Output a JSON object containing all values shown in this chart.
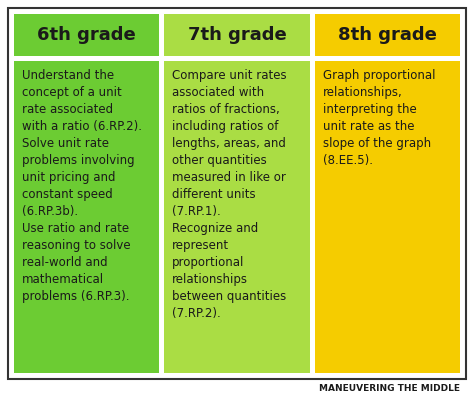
{
  "background_color": "#ffffff",
  "border_color": "#333333",
  "columns": [
    {
      "header": "6th grade",
      "header_bg": "#6ccc33",
      "body_bg": "#6ccc33",
      "body_text": "Understand the\nconcept of a unit\nrate associated\nwith a ratio (6.RP.2).\nSolve unit rate\nproblems involving\nunit pricing and\nconstant speed\n(6.RP.3b).\nUse ratio and rate\nreasoning to solve\nreal-world and\nmathematical\nproblems (6.RP.3).",
      "text_color": "#1a1a1a"
    },
    {
      "header": "7th grade",
      "header_bg": "#aadd44",
      "body_bg": "#aadd44",
      "body_text": "Compare unit rates\nassociated with\nratios of fractions,\nincluding ratios of\nlengths, areas, and\nother quantities\nmeasured in like or\ndifferent units\n(7.RP.1).\nRecognize and\nrepresent\nproportional\nrelationships\nbetween quantities\n(7.RP.2).",
      "text_color": "#1a1a1a"
    },
    {
      "header": "8th grade",
      "header_bg": "#f5cc00",
      "body_bg": "#f5cc00",
      "body_text": "Graph proportional\nrelationships,\ninterpreting the\nunit rate as the\nslope of the graph\n(8.EE.5).",
      "text_color": "#1a1a1a"
    }
  ],
  "footer_text": "MANEUVERING THE MIDDLE",
  "footer_color": "#1a1a1a",
  "header_fontsize": 13,
  "body_fontsize": 8.5,
  "footer_fontsize": 6.5
}
